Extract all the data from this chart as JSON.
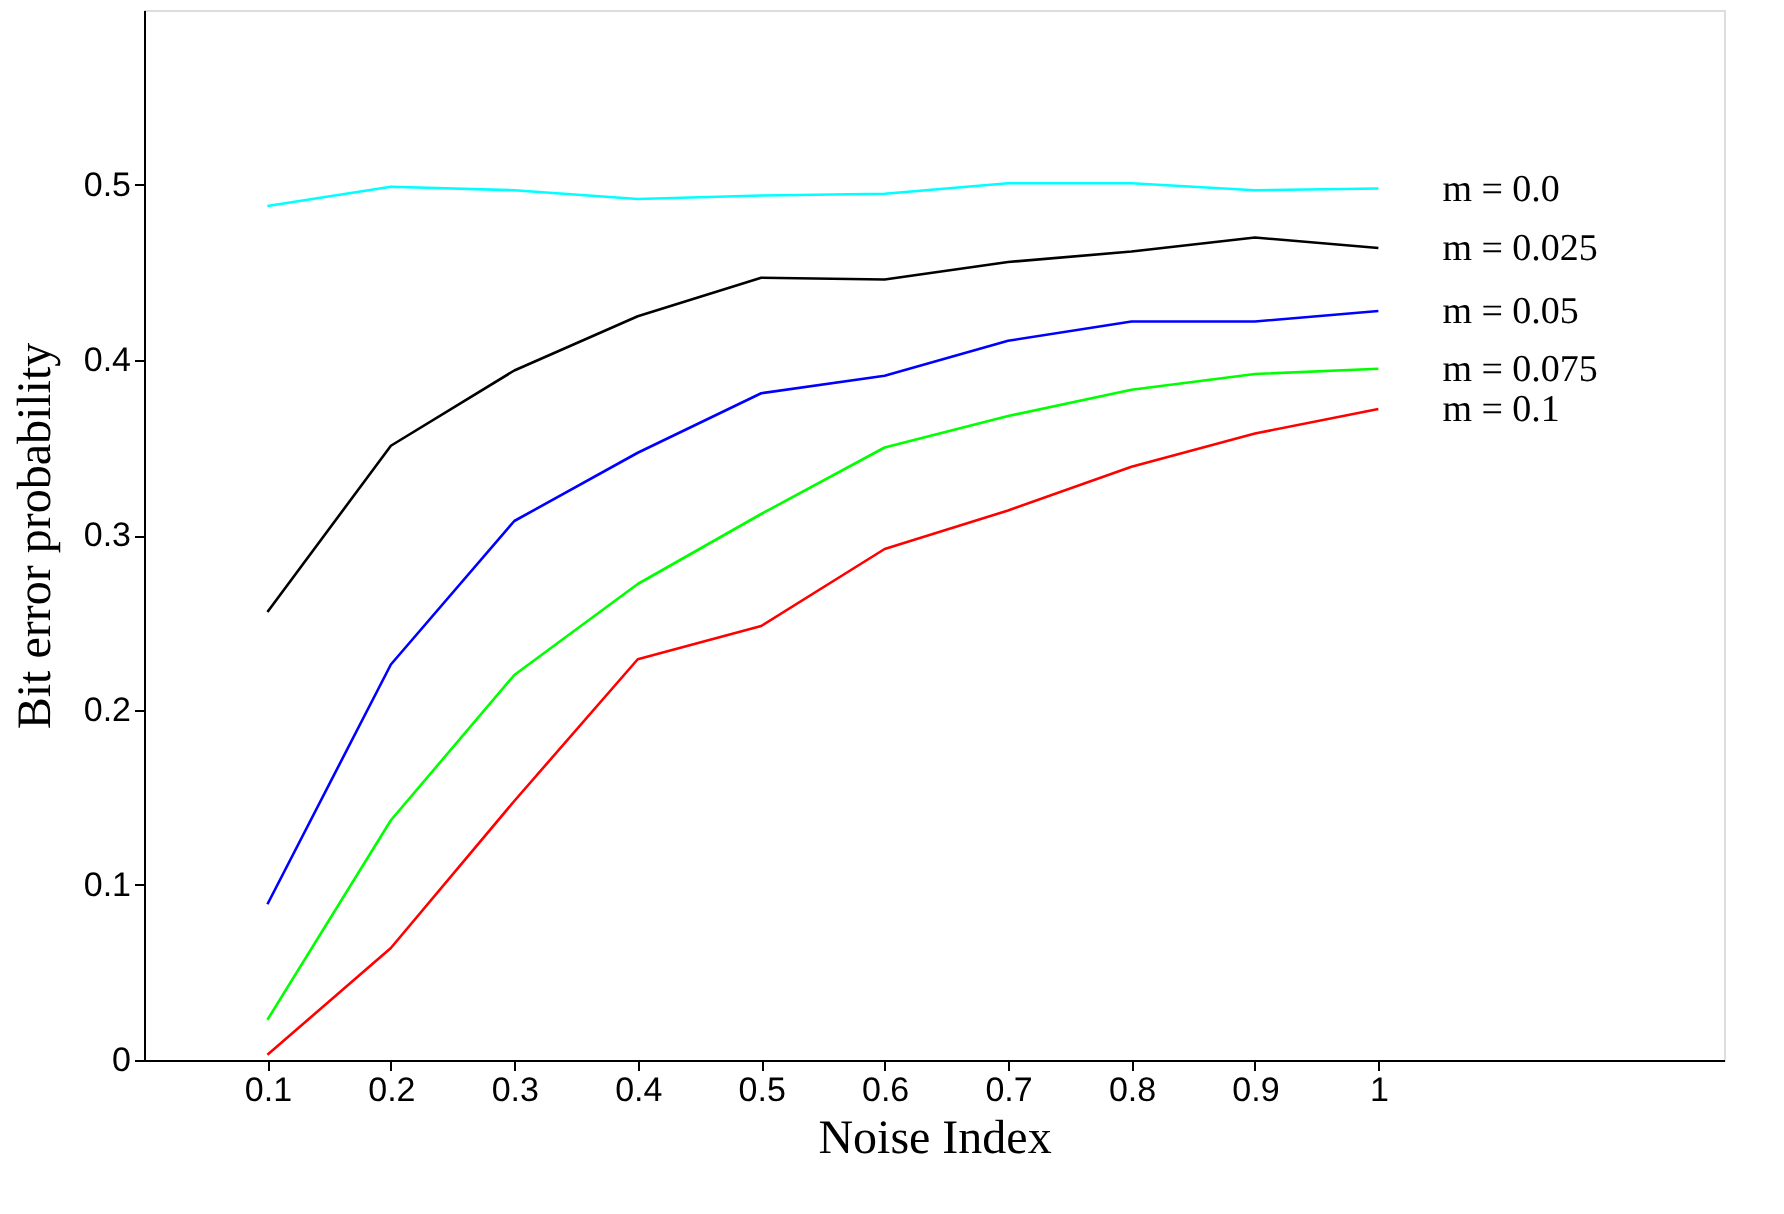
{
  "chart_data": {
    "type": "line",
    "xlabel": "Noise Index",
    "ylabel": "Bit error probability",
    "x": [
      0.1,
      0.2,
      0.3,
      0.4,
      0.5,
      0.6,
      0.7,
      0.8,
      0.9,
      1
    ],
    "xlim": [
      0,
      1.28
    ],
    "xticks": [
      0.1,
      0.2,
      0.3,
      0.4,
      0.5,
      0.6,
      0.7,
      0.8,
      0.9,
      1
    ],
    "ylim": [
      0,
      0.6
    ],
    "yticks": [
      0,
      0.1,
      0.2,
      0.3,
      0.4,
      0.5
    ],
    "grid": false,
    "legend": false,
    "marker": "none",
    "line_style": "solid",
    "series": [
      {
        "name": "m = 0.0",
        "color": "#00ffff",
        "values": [
          0.488,
          0.499,
          0.497,
          0.492,
          0.494,
          0.495,
          0.501,
          0.501,
          0.497,
          0.498
        ]
      },
      {
        "name": "m = 0.025",
        "color": "#000000",
        "values": [
          0.256,
          0.351,
          0.394,
          0.425,
          0.447,
          0.446,
          0.456,
          0.462,
          0.47,
          0.464
        ]
      },
      {
        "name": "m = 0.05",
        "color": "#0000ff",
        "values": [
          0.089,
          0.226,
          0.308,
          0.347,
          0.381,
          0.391,
          0.411,
          0.422,
          0.422,
          0.428
        ]
      },
      {
        "name": "m = 0.075",
        "color": "#00ff00",
        "values": [
          0.023,
          0.137,
          0.22,
          0.272,
          0.312,
          0.35,
          0.368,
          0.383,
          0.392,
          0.395
        ]
      },
      {
        "name": "m = 0.1",
        "color": "#ff0000",
        "values": [
          0.003,
          0.064,
          0.148,
          0.229,
          0.248,
          0.292,
          0.314,
          0.339,
          0.358,
          0.372
        ]
      }
    ]
  }
}
